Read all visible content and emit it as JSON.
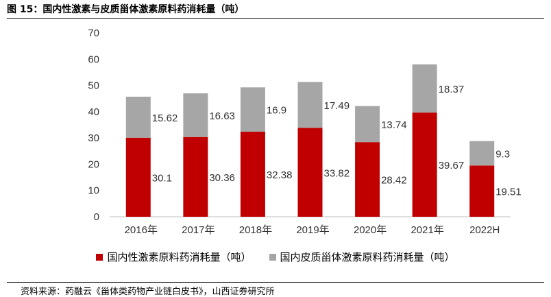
{
  "figure_title": "图 15：国内性激素与皮质甾体激素原料药消耗量（吨）",
  "source": "资料来源：药融云《甾体类药物产业链白皮书》，山西证券研究所",
  "colors": {
    "series_red": "#c00000",
    "series_gray": "#a6a6a6"
  },
  "chart_data": {
    "type": "bar",
    "stacked": true,
    "categories": [
      "2016年",
      "2017年",
      "2018年",
      "2019年",
      "2020年",
      "2021年",
      "2022H"
    ],
    "series": [
      {
        "name": "国内性激素原料药消耗量（吨）",
        "values": [
          30.1,
          30.36,
          32.38,
          33.82,
          28.42,
          39.67,
          19.51
        ]
      },
      {
        "name": "国内皮质甾体激素原料药消耗量（吨）",
        "values": [
          15.62,
          16.63,
          16.9,
          17.49,
          13.74,
          18.37,
          9.3
        ]
      }
    ],
    "data_labels": [
      [
        "30.1",
        "30.36",
        "32.38",
        "33.82",
        "28.42",
        "39.67",
        "19.51"
      ],
      [
        "15.62",
        "16.63",
        "16.9",
        "17.49",
        "13.74",
        "18.37",
        "9.3"
      ]
    ],
    "yticks": [
      "0",
      "10",
      "20",
      "30",
      "40",
      "50",
      "60",
      "70"
    ],
    "ylim": [
      0,
      70
    ],
    "grid": false,
    "legend": "bottom"
  }
}
